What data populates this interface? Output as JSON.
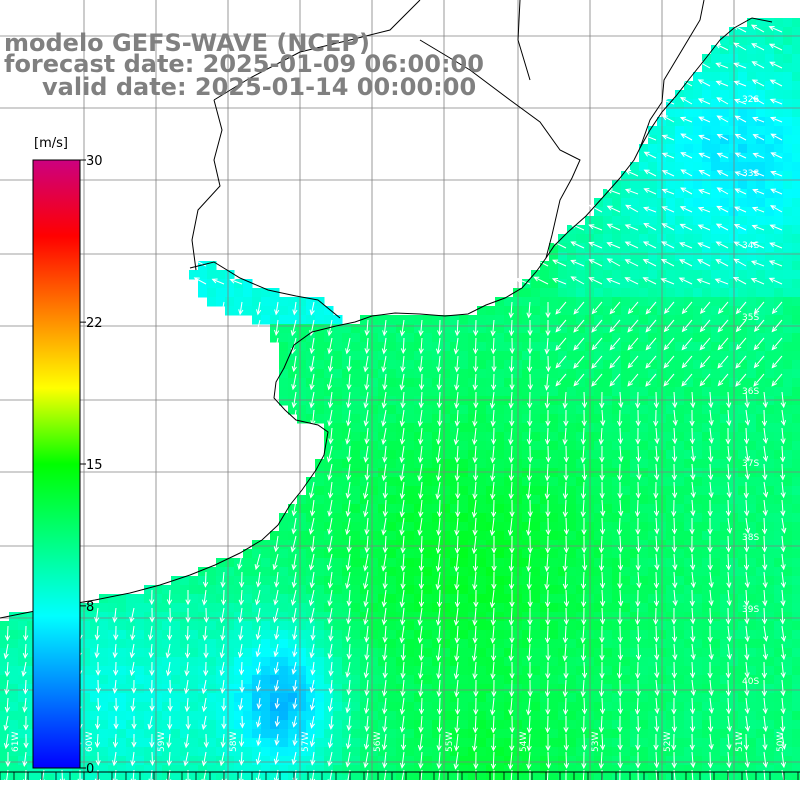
{
  "title": {
    "line1": "modelo GEFS-WAVE (NCEP)",
    "line2": "forecast date: 2025-01-09 06:00:00",
    "line3": "valid date: 2025-01-14 00:00:00"
  },
  "colorbar": {
    "unit": "[m/s]",
    "ticks": [
      {
        "label": "30",
        "value": 30
      },
      {
        "label": "22",
        "value": 22
      },
      {
        "label": "15",
        "value": 15
      },
      {
        "label": "8",
        "value": 8
      },
      {
        "label": "0",
        "value": 0
      }
    ],
    "stops": [
      "#0000ff",
      "#0080ff",
      "#00ffff",
      "#00ff80",
      "#00ff00",
      "#ffff00",
      "#ff8000",
      "#ff0000",
      "#cc0080"
    ]
  },
  "lat_labels": [
    "32S",
    "33S",
    "34S",
    "35S",
    "36S",
    "37S",
    "38S",
    "39S",
    "40S"
  ],
  "lon_labels": [
    "61W",
    "60W",
    "59W",
    "58W",
    "57W",
    "56W",
    "55W",
    "54W",
    "53W",
    "52W",
    "51W",
    "50W"
  ],
  "colors": {
    "land": "#ffffff",
    "coast": "#000000",
    "grid": "#808080",
    "title": "#808080",
    "arrow": "#ffffff"
  }
}
